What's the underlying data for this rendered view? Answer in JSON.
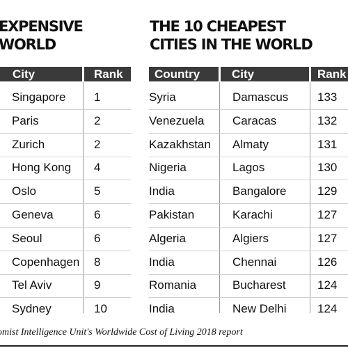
{
  "left_heading": [
    "EXPENSIVE",
    "WORLD"
  ],
  "right_heading": [
    "THE 10 CHEAPEST",
    "CITIES IN THE WORLD"
  ],
  "expensive_table": {
    "headers": [
      "City",
      "Rank"
    ],
    "rows": [
      [
        "Singapore",
        "1"
      ],
      [
        "Paris",
        "2"
      ],
      [
        "Zurich",
        "2"
      ],
      [
        "Hong Kong",
        "4"
      ],
      [
        "Oslo",
        "5"
      ],
      [
        "Geneva",
        "6"
      ],
      [
        "Seoul",
        "6"
      ],
      [
        "Copenhagen",
        "8"
      ],
      [
        "Tel Aviv",
        "9"
      ],
      [
        "Sydney",
        "10"
      ]
    ]
  },
  "cheapest_table": {
    "headers": [
      "Country",
      "City",
      "Rank"
    ],
    "rows": [
      [
        "Syria",
        "Damascus",
        "133"
      ],
      [
        "Venezuela",
        "Caracas",
        "132"
      ],
      [
        "Kazakhstan",
        "Almaty",
        "131"
      ],
      [
        "Nigeria",
        "Lagos",
        "130"
      ],
      [
        "India",
        "Bangalore",
        "129"
      ],
      [
        "Pakistan",
        "Karachi",
        "127"
      ],
      [
        "Algeria",
        "Algiers",
        "127"
      ],
      [
        "India",
        "Chennai",
        "126"
      ],
      [
        "Romania",
        "Bucharest",
        "124"
      ],
      [
        "India",
        "New Delhi",
        "124"
      ]
    ]
  },
  "footer": "omist Intelligence Unit's Worldwide Cost of Living 2018 report"
}
